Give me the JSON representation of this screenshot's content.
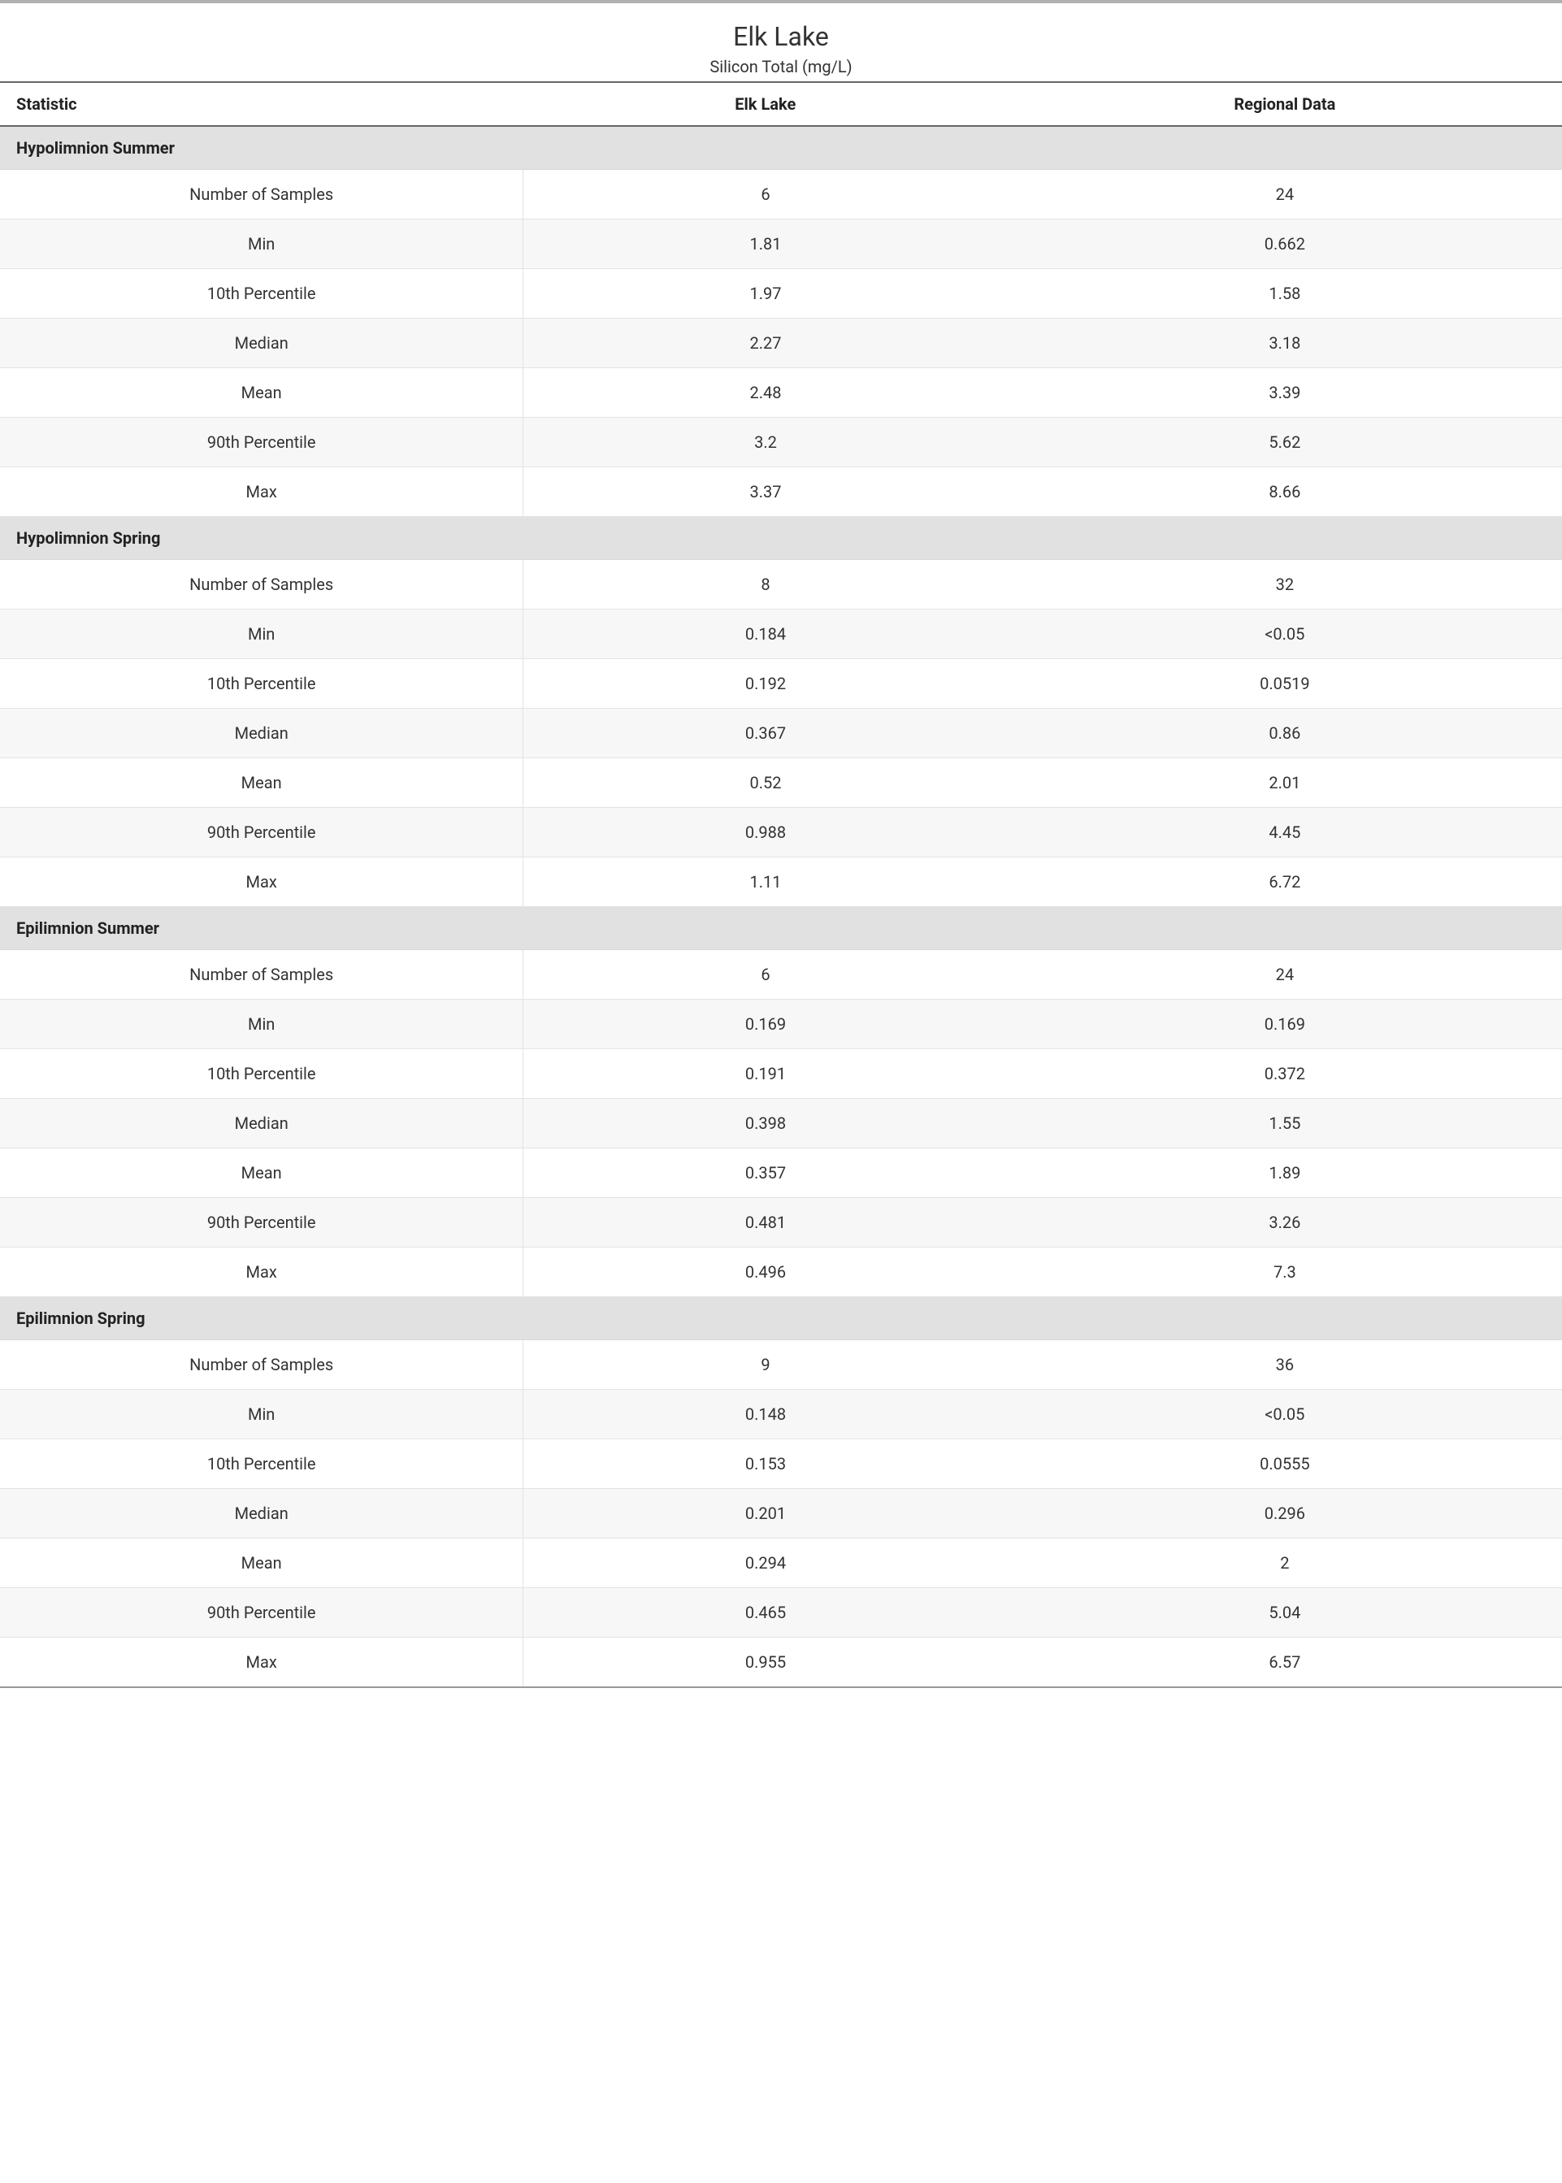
{
  "title": "Elk Lake",
  "subtitle": "Silicon Total (mg/L)",
  "columns": {
    "stat": "Statistic",
    "colA": "Elk Lake",
    "colB": "Regional Data"
  },
  "row_labels": {
    "nsamples": "Number of Samples",
    "min": "Min",
    "p10": "10th Percentile",
    "median": "Median",
    "mean": "Mean",
    "p90": "90th Percentile",
    "max": "Max"
  },
  "sections": [
    {
      "name": "Hypolimnion Summer",
      "rows": {
        "nsamples": {
          "a": "6",
          "b": "24"
        },
        "min": {
          "a": "1.81",
          "b": "0.662"
        },
        "p10": {
          "a": "1.97",
          "b": "1.58"
        },
        "median": {
          "a": "2.27",
          "b": "3.18"
        },
        "mean": {
          "a": "2.48",
          "b": "3.39"
        },
        "p90": {
          "a": "3.2",
          "b": "5.62"
        },
        "max": {
          "a": "3.37",
          "b": "8.66"
        }
      }
    },
    {
      "name": "Hypolimnion Spring",
      "rows": {
        "nsamples": {
          "a": "8",
          "b": "32"
        },
        "min": {
          "a": "0.184",
          "b": "<0.05"
        },
        "p10": {
          "a": "0.192",
          "b": "0.0519"
        },
        "median": {
          "a": "0.367",
          "b": "0.86"
        },
        "mean": {
          "a": "0.52",
          "b": "2.01"
        },
        "p90": {
          "a": "0.988",
          "b": "4.45"
        },
        "max": {
          "a": "1.11",
          "b": "6.72"
        }
      }
    },
    {
      "name": "Epilimnion Summer",
      "rows": {
        "nsamples": {
          "a": "6",
          "b": "24"
        },
        "min": {
          "a": "0.169",
          "b": "0.169"
        },
        "p10": {
          "a": "0.191",
          "b": "0.372"
        },
        "median": {
          "a": "0.398",
          "b": "1.55"
        },
        "mean": {
          "a": "0.357",
          "b": "1.89"
        },
        "p90": {
          "a": "0.481",
          "b": "3.26"
        },
        "max": {
          "a": "0.496",
          "b": "7.3"
        }
      }
    },
    {
      "name": "Epilimnion Spring",
      "rows": {
        "nsamples": {
          "a": "9",
          "b": "36"
        },
        "min": {
          "a": "0.148",
          "b": "<0.05"
        },
        "p10": {
          "a": "0.153",
          "b": "0.0555"
        },
        "median": {
          "a": "0.201",
          "b": "0.296"
        },
        "mean": {
          "a": "0.294",
          "b": "2"
        },
        "p90": {
          "a": "0.465",
          "b": "5.04"
        },
        "max": {
          "a": "0.955",
          "b": "6.57"
        }
      }
    }
  ],
  "style": {
    "row_order": [
      "nsamples",
      "min",
      "p10",
      "median",
      "mean",
      "p90",
      "max"
    ],
    "colors": {
      "section_bg": "#e1e1e1",
      "alt_row_bg": "#f7f7f7",
      "border": "#e3e3e3",
      "header_border": "#666666",
      "text": "#333333"
    },
    "fontsizes": {
      "title": 32,
      "subtitle": 20,
      "header": 20,
      "cell": 20
    }
  }
}
